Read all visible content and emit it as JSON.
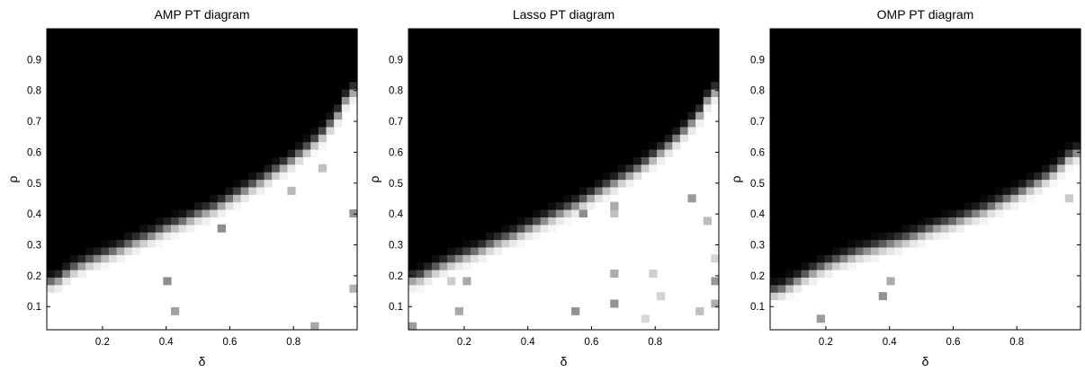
{
  "chart_data": [
    {
      "type": "heatmap",
      "title": "AMP PT diagram",
      "xlabel": "δ",
      "ylabel": "ρ",
      "xlim": [
        0.025,
        1.0
      ],
      "ylim": [
        0.025,
        1.0
      ],
      "xticks": [
        0.2,
        0.4,
        0.6,
        0.8
      ],
      "yticks": [
        0.1,
        0.2,
        0.3,
        0.4,
        0.5,
        0.6,
        0.7,
        0.8,
        0.9
      ],
      "grid": false,
      "colormap": "gray (black = high, white = low)",
      "transition_curve": {
        "delta": [
          0.05,
          0.1,
          0.15,
          0.2,
          0.25,
          0.3,
          0.35,
          0.4,
          0.45,
          0.5,
          0.55,
          0.6,
          0.65,
          0.7,
          0.75,
          0.8,
          0.85,
          0.9,
          0.95,
          0.975
        ],
        "rho": [
          0.18,
          0.22,
          0.245,
          0.265,
          0.285,
          0.31,
          0.33,
          0.355,
          0.375,
          0.4,
          0.42,
          0.45,
          0.48,
          0.51,
          0.545,
          0.58,
          0.62,
          0.67,
          0.74,
          0.8
        ]
      }
    },
    {
      "type": "heatmap",
      "title": "Lasso PT diagram",
      "xlabel": "δ",
      "ylabel": "ρ",
      "xlim": [
        0.025,
        1.0
      ],
      "ylim": [
        0.025,
        1.0
      ],
      "xticks": [
        0.2,
        0.4,
        0.6,
        0.8
      ],
      "yticks": [
        0.1,
        0.2,
        0.3,
        0.4,
        0.5,
        0.6,
        0.7,
        0.8,
        0.9
      ],
      "grid": false,
      "colormap": "gray (black = high, white = low)",
      "transition_curve": {
        "delta": [
          0.05,
          0.1,
          0.15,
          0.2,
          0.25,
          0.3,
          0.35,
          0.4,
          0.45,
          0.5,
          0.55,
          0.6,
          0.65,
          0.7,
          0.75,
          0.8,
          0.85,
          0.9,
          0.95,
          0.975
        ],
        "rho": [
          0.19,
          0.22,
          0.245,
          0.265,
          0.285,
          0.31,
          0.33,
          0.355,
          0.38,
          0.405,
          0.43,
          0.46,
          0.49,
          0.52,
          0.55,
          0.59,
          0.63,
          0.68,
          0.74,
          0.8
        ]
      }
    },
    {
      "type": "heatmap",
      "title": "OMP PT diagram",
      "xlabel": "δ",
      "ylabel": "ρ",
      "xlim": [
        0.025,
        1.0
      ],
      "ylim": [
        0.025,
        1.0
      ],
      "xticks": [
        0.2,
        0.4,
        0.6,
        0.8
      ],
      "yticks": [
        0.1,
        0.2,
        0.3,
        0.4,
        0.5,
        0.6,
        0.7,
        0.8,
        0.9
      ],
      "grid": false,
      "colormap": "gray (black = high, white = low)",
      "transition_curve": {
        "delta": [
          0.05,
          0.1,
          0.15,
          0.2,
          0.25,
          0.3,
          0.35,
          0.4,
          0.45,
          0.5,
          0.55,
          0.6,
          0.65,
          0.7,
          0.75,
          0.8,
          0.85,
          0.9,
          0.95,
          0.975
        ],
        "rho": [
          0.15,
          0.18,
          0.21,
          0.235,
          0.255,
          0.275,
          0.29,
          0.305,
          0.32,
          0.34,
          0.36,
          0.375,
          0.395,
          0.415,
          0.44,
          0.465,
          0.495,
          0.525,
          0.57,
          0.6
        ]
      }
    }
  ]
}
